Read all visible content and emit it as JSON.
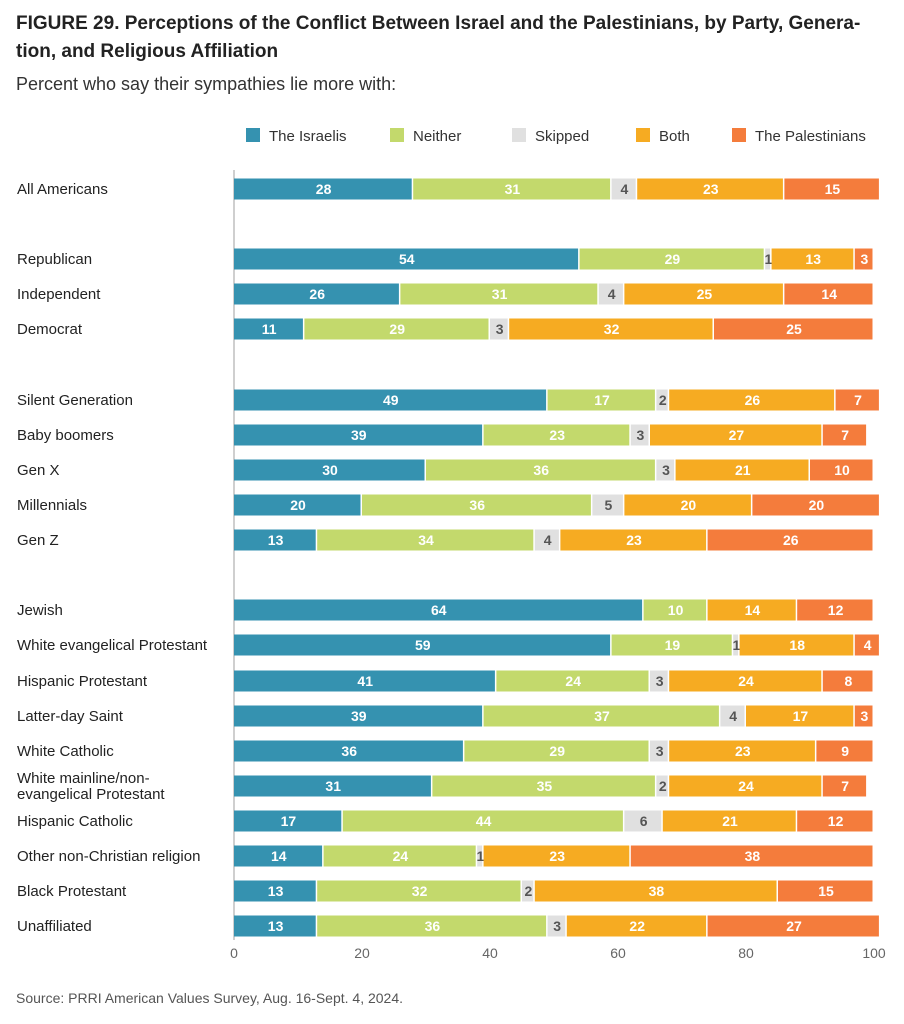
{
  "figure": {
    "title": "FIGURE 29.  Perceptions of the Conflict Between Israel and the Palestinians, by Party, Genera-tion, and Religious Affiliation",
    "title_line1": "FIGURE 29.  Perceptions of the Conflict Between Israel and the Palestinians, by Party, Genera-",
    "title_line2": "tion, and Religious Affiliation",
    "subtitle": "Percent who say their sympathies lie more with:",
    "source": "Source: PRRI American Values Survey, Aug. 16-Sept. 4, 2024."
  },
  "chart_data": {
    "type": "bar",
    "orientation": "horizontal",
    "stacked": true,
    "xlim": [
      0,
      100
    ],
    "xticks": [
      0,
      20,
      40,
      60,
      80,
      100
    ],
    "legend_position": "top-right",
    "grid": false,
    "categories": [
      "All Americans",
      "Republican",
      "Independent",
      "Democrat",
      "Silent Generation",
      "Baby boomers",
      "Gen X",
      "Millennials",
      "Gen Z",
      "Jewish",
      "White evangelical Protestant",
      "Hispanic Protestant",
      "Latter-day Saint",
      "White Catholic",
      "White mainline/non-evangelical Protestant",
      "Hispanic Catholic",
      "Other non-Christian religion",
      "Black Protestant",
      "Unaffiliated"
    ],
    "category_label_lines": {
      "White mainline/non-evangelical Protestant": [
        "White mainline/non-",
        "evangelical Protestant"
      ]
    },
    "groups": [
      [
        0
      ],
      [
        1,
        2,
        3
      ],
      [
        4,
        5,
        6,
        7,
        8
      ],
      [
        9,
        10,
        11,
        12,
        13,
        14,
        15,
        16,
        17,
        18
      ]
    ],
    "series": [
      {
        "name": "The Israelis",
        "color": "#3592b0",
        "label_color": "#ffffff",
        "values": [
          28,
          54,
          26,
          11,
          49,
          39,
          30,
          20,
          13,
          64,
          59,
          41,
          39,
          36,
          31,
          17,
          14,
          13,
          13
        ]
      },
      {
        "name": "Neither",
        "color": "#c3d96c",
        "label_color": "#ffffff",
        "values": [
          31,
          29,
          31,
          29,
          17,
          23,
          36,
          36,
          34,
          10,
          19,
          24,
          37,
          29,
          35,
          44,
          24,
          32,
          36
        ]
      },
      {
        "name": "Skipped",
        "color": "#e0e0e0",
        "label_color": "#555555",
        "values": [
          4,
          1,
          4,
          3,
          2,
          3,
          3,
          5,
          4,
          0,
          1,
          3,
          4,
          3,
          2,
          6,
          1,
          2,
          3
        ]
      },
      {
        "name": "Both",
        "color": "#f6ab22",
        "label_color": "#ffffff",
        "values": [
          23,
          13,
          25,
          32,
          26,
          27,
          21,
          20,
          23,
          14,
          18,
          24,
          17,
          23,
          24,
          21,
          23,
          38,
          22
        ]
      },
      {
        "name": "The Palestinians",
        "color": "#f47c3c",
        "label_color": "#ffffff",
        "values": [
          15,
          3,
          14,
          25,
          7,
          7,
          10,
          20,
          26,
          12,
          4,
          8,
          3,
          9,
          7,
          12,
          38,
          15,
          27
        ]
      }
    ]
  }
}
